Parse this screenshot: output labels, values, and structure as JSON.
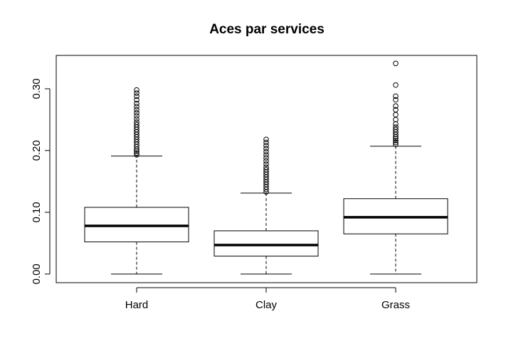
{
  "chart_data": {
    "type": "boxplot",
    "title": "Aces par services",
    "xlabel": "",
    "ylabel": "",
    "ylim": [
      -0.014,
      0.354
    ],
    "y_ticks": [
      0.0,
      0.1,
      0.2,
      0.3
    ],
    "y_tick_labels": [
      "0.00",
      "0.10",
      "0.20",
      "0.30"
    ],
    "categories": [
      "Hard",
      "Clay",
      "Grass"
    ],
    "boxes": [
      {
        "name": "Hard",
        "min": 0.0,
        "q1": 0.052,
        "median": 0.078,
        "q3": 0.108,
        "max": 0.191,
        "outliers": [
          0.193,
          0.196,
          0.199,
          0.202,
          0.206,
          0.21,
          0.214,
          0.218,
          0.222,
          0.226,
          0.23,
          0.234,
          0.238,
          0.242,
          0.246,
          0.251,
          0.256,
          0.261,
          0.266,
          0.271,
          0.276,
          0.282,
          0.288,
          0.293,
          0.298
        ]
      },
      {
        "name": "Clay",
        "min": 0.0,
        "q1": 0.029,
        "median": 0.047,
        "q3": 0.07,
        "max": 0.131,
        "outliers": [
          0.133,
          0.137,
          0.141,
          0.145,
          0.149,
          0.153,
          0.157,
          0.161,
          0.165,
          0.169,
          0.173,
          0.178,
          0.183,
          0.188,
          0.193,
          0.198,
          0.203,
          0.208,
          0.213,
          0.218
        ]
      },
      {
        "name": "Grass",
        "min": 0.0,
        "q1": 0.065,
        "median": 0.092,
        "q3": 0.122,
        "max": 0.207,
        "outliers": [
          0.21,
          0.213,
          0.216,
          0.219,
          0.222,
          0.226,
          0.23,
          0.234,
          0.238,
          0.243,
          0.25,
          0.258,
          0.266,
          0.272,
          0.282,
          0.288,
          0.306,
          0.341
        ]
      }
    ],
    "grid": false,
    "legend": "none",
    "colors": {
      "stroke": "#000000",
      "background": "#ffffff"
    }
  }
}
